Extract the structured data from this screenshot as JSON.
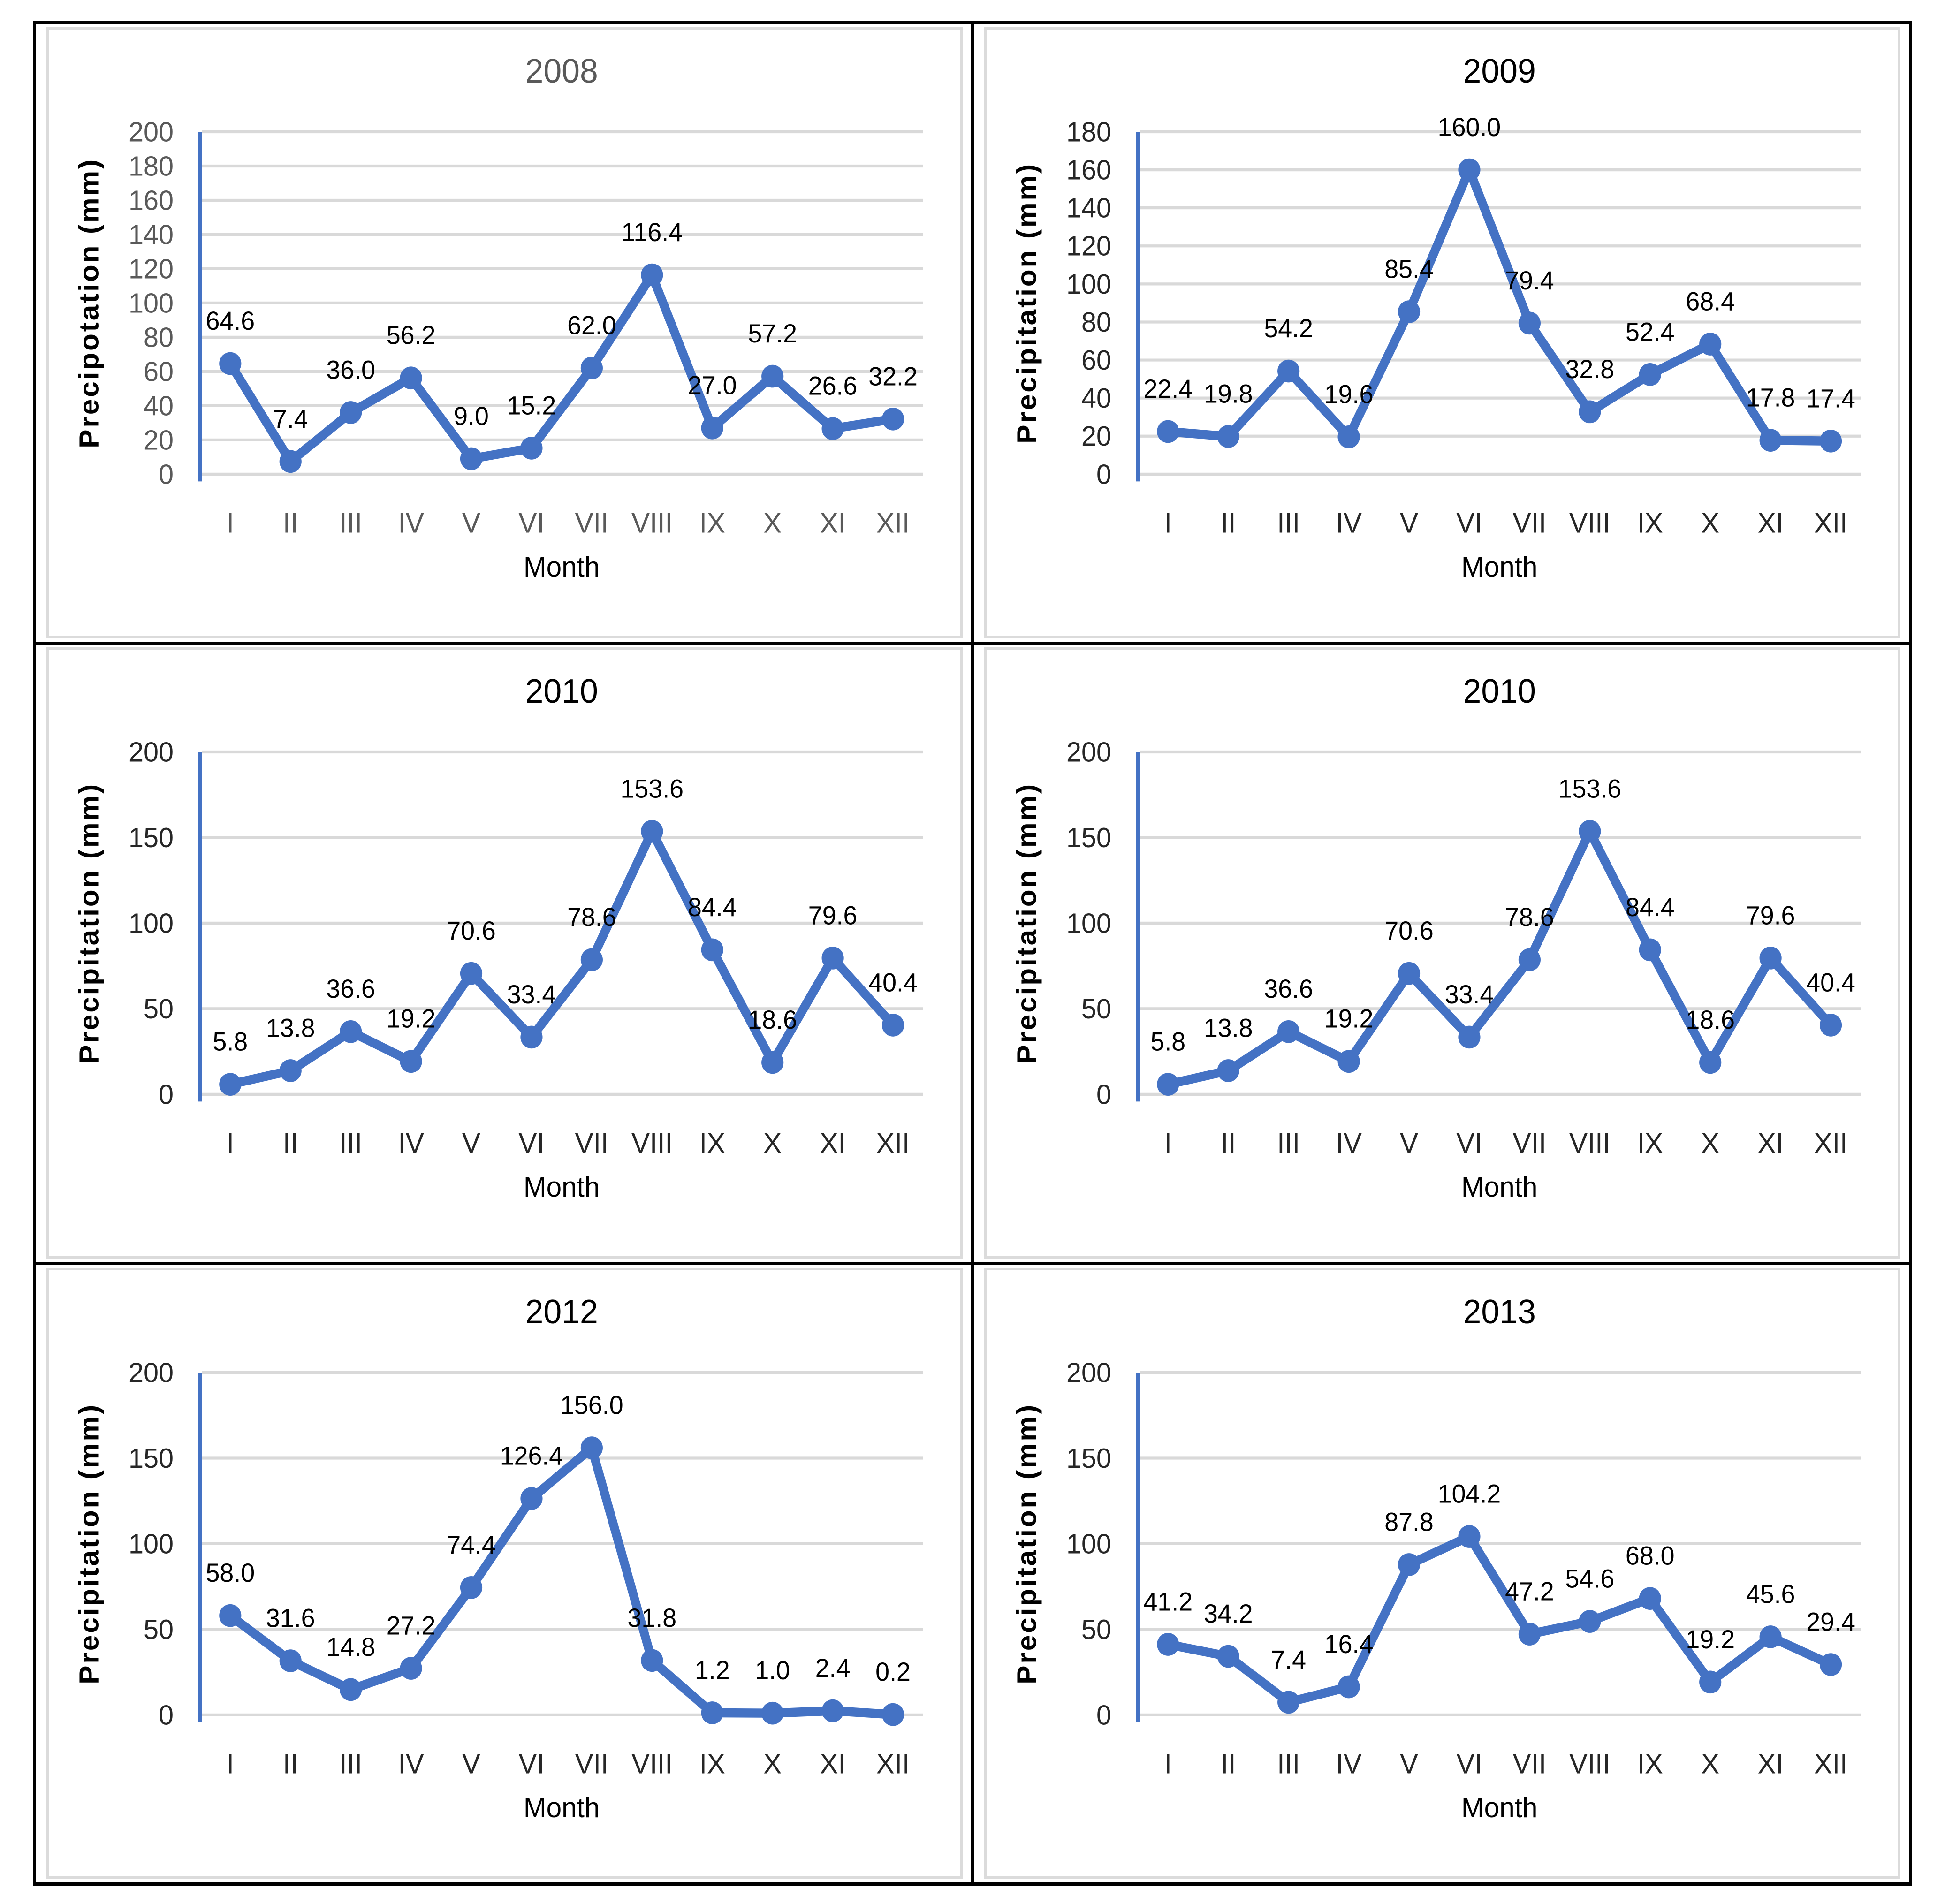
{
  "page": {
    "background": "#ffffff",
    "table_border_color": "#000000",
    "chart_frame_border_color": "#dbdbdb",
    "layout": "2 columns x 3 rows of line charts"
  },
  "defaults": {
    "type": "line",
    "marker": "circle",
    "series_color": "#4472c4",
    "axis_line_color": "#4472c4",
    "gridline_color": "#d9d9d9",
    "data_label_color": "#000000",
    "axis_title_color": "#000000",
    "grid": true,
    "legend": "none",
    "label_decimals": 1,
    "data_label_position": "above"
  },
  "chart_data": [
    {
      "type": "line",
      "title": "2008",
      "title_color": "#595959",
      "tick_color": "#595959",
      "ylabel": "Precipotation (mm)",
      "xlabel": "Month",
      "categories": [
        "I",
        "II",
        "III",
        "IV",
        "V",
        "VI",
        "VII",
        "VIII",
        "IX",
        "X",
        "XI",
        "XII"
      ],
      "values": [
        64.6,
        7.4,
        36.0,
        56.2,
        9.0,
        15.2,
        62.0,
        116.4,
        27.0,
        57.2,
        26.6,
        32.2
      ],
      "ylim": [
        0,
        200
      ],
      "yticks": [
        0,
        20,
        40,
        60,
        80,
        100,
        120,
        140,
        160,
        180,
        200
      ],
      "grid": true,
      "legend": "none"
    },
    {
      "type": "line",
      "title": "2009",
      "title_color": "#000000",
      "tick_color": "#262626",
      "ylabel": "Precipitation (mm)",
      "xlabel": "Month",
      "categories": [
        "I",
        "II",
        "III",
        "IV",
        "V",
        "VI",
        "VII",
        "VIII",
        "IX",
        "X",
        "XI",
        "XII"
      ],
      "values": [
        22.4,
        19.8,
        54.2,
        19.6,
        85.4,
        160.0,
        79.4,
        32.8,
        52.4,
        68.4,
        17.8,
        17.4
      ],
      "ylim": [
        0,
        180
      ],
      "yticks": [
        0,
        20,
        40,
        60,
        80,
        100,
        120,
        140,
        160,
        180
      ],
      "grid": true,
      "legend": "none"
    },
    {
      "type": "line",
      "title": "2010",
      "title_color": "#000000",
      "tick_color": "#262626",
      "ylabel": "Precipitation (mm)",
      "xlabel": "Month",
      "categories": [
        "I",
        "II",
        "III",
        "IV",
        "V",
        "VI",
        "VII",
        "VIII",
        "IX",
        "X",
        "XI",
        "XII"
      ],
      "values": [
        5.8,
        13.8,
        36.6,
        19.2,
        70.6,
        33.4,
        78.6,
        153.6,
        84.4,
        18.6,
        79.6,
        40.4
      ],
      "ylim": [
        0,
        200
      ],
      "yticks": [
        0,
        50,
        100,
        150,
        200
      ],
      "grid": true,
      "legend": "none"
    },
    {
      "type": "line",
      "title": "2010",
      "title_color": "#000000",
      "tick_color": "#262626",
      "ylabel": "Precipitation (mm)",
      "xlabel": "Month",
      "categories": [
        "I",
        "II",
        "III",
        "IV",
        "V",
        "VI",
        "VII",
        "VIII",
        "IX",
        "X",
        "XI",
        "XII"
      ],
      "values": [
        5.8,
        13.8,
        36.6,
        19.2,
        70.6,
        33.4,
        78.6,
        153.6,
        84.4,
        18.6,
        79.6,
        40.4
      ],
      "ylim": [
        0,
        200
      ],
      "yticks": [
        0,
        50,
        100,
        150,
        200
      ],
      "grid": true,
      "legend": "none"
    },
    {
      "type": "line",
      "title": "2012",
      "title_color": "#000000",
      "tick_color": "#262626",
      "ylabel": "Precipitation (mm)",
      "xlabel": "Month",
      "categories": [
        "I",
        "II",
        "III",
        "IV",
        "V",
        "VI",
        "VII",
        "VIII",
        "IX",
        "X",
        "XI",
        "XII"
      ],
      "values": [
        58.0,
        31.6,
        14.8,
        27.2,
        74.4,
        126.4,
        156.0,
        31.8,
        1.2,
        1.0,
        2.4,
        0.2
      ],
      "ylim": [
        0,
        200
      ],
      "yticks": [
        0,
        50,
        100,
        150,
        200
      ],
      "grid": true,
      "legend": "none"
    },
    {
      "type": "line",
      "title": "2013",
      "title_color": "#000000",
      "tick_color": "#262626",
      "ylabel": "Precipitation (mm)",
      "xlabel": "Month",
      "categories": [
        "I",
        "II",
        "III",
        "IV",
        "V",
        "VI",
        "VII",
        "VIII",
        "IX",
        "X",
        "XI",
        "XII"
      ],
      "values": [
        41.2,
        34.2,
        7.4,
        16.4,
        87.8,
        104.2,
        47.2,
        54.6,
        68.0,
        19.2,
        45.6,
        29.4
      ],
      "ylim": [
        0,
        200
      ],
      "yticks": [
        0,
        50,
        100,
        150,
        200
      ],
      "grid": true,
      "legend": "none"
    }
  ]
}
